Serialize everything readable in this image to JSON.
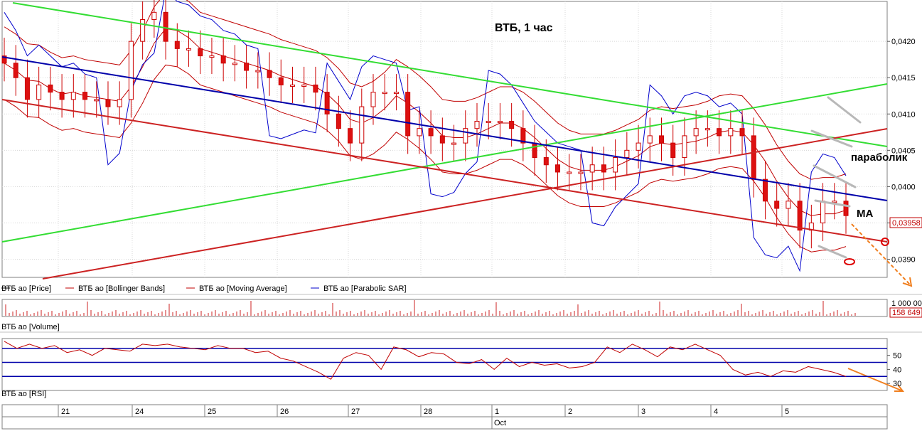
{
  "chart_data": {
    "type": "candlestick",
    "title": "ВТБ, 1 час",
    "annotations": {
      "parabolic": "параболик",
      "ma": "MA"
    },
    "price_axis": {
      "ylim": [
        0.03875,
        0.04255
      ],
      "ticks": [
        "0,0420",
        "0,0415",
        "0,0410",
        "0,0405",
        "0,0400",
        "0,0395",
        "0,0390"
      ],
      "tick_values": [
        0.042,
        0.0415,
        0.041,
        0.0405,
        0.04,
        0.0395,
        0.039
      ],
      "last_price": "0,03958"
    },
    "legend": [
      {
        "label": "ВТБ ао [Price]",
        "color": "#000000"
      },
      {
        "label": "ВТБ ао [Bollinger Bands]",
        "color": "#c00000"
      },
      {
        "label": "ВТБ ао [Moving Average]",
        "color": "#c00000"
      },
      {
        "label": "ВТБ ао [Parabolic SAR]",
        "color": "#0000cc"
      }
    ],
    "price_series": [
      0.0417,
      0.0415,
      0.0412,
      0.0414,
      0.0413,
      0.0412,
      0.0413,
      0.0412,
      0.0412,
      0.0411,
      0.0412,
      0.042,
      0.0423,
      0.0424,
      0.042,
      0.0419,
      0.0419,
      0.0418,
      0.0418,
      0.0417,
      0.0417,
      0.0416,
      0.0416,
      0.0415,
      0.0414,
      0.0414,
      0.0414,
      0.0413,
      0.041,
      0.0408,
      0.0406,
      0.0411,
      0.0413,
      0.0413,
      0.0413,
      0.0407,
      0.0408,
      0.0407,
      0.0406,
      0.0406,
      0.0408,
      0.0409,
      0.0409,
      0.0409,
      0.0408,
      0.0406,
      0.0404,
      0.0403,
      0.0402,
      0.0402,
      0.0402,
      0.0403,
      0.0402,
      0.0404,
      0.0405,
      0.0406,
      0.0407,
      0.0406,
      0.0404,
      0.0407,
      0.0408,
      0.0408,
      0.0407,
      0.0408,
      0.0407,
      0.0401,
      0.0398,
      0.0397,
      0.0398,
      0.0394,
      0.0395,
      0.0398,
      0.0398,
      0.0396
    ],
    "volume_panel": {
      "label": "ВТБ ао [Volume]",
      "ticks": [
        "1 000 00"
      ],
      "last_value": "158 649"
    },
    "rsi_panel": {
      "label": "ВТБ ао [RSI]",
      "ylim": [
        25,
        62
      ],
      "ticks": [
        50,
        40,
        30
      ],
      "levels": [
        55,
        45,
        35
      ],
      "values": [
        60,
        55,
        58,
        55,
        57,
        52,
        54,
        50,
        55,
        54,
        53,
        58,
        57,
        58,
        56,
        55,
        54,
        57,
        55,
        55,
        52,
        53,
        48,
        46,
        42,
        38,
        33,
        48,
        52,
        50,
        40,
        56,
        54,
        49,
        52,
        51,
        45,
        44,
        47,
        40,
        48,
        42,
        45,
        43,
        44,
        41,
        42,
        45,
        56,
        52,
        58,
        54,
        49,
        56,
        54,
        58,
        54,
        50,
        40,
        36,
        38,
        35,
        39,
        38,
        42,
        40,
        38,
        35
      ]
    },
    "x_axis": {
      "days": [
        "21",
        "24",
        "25",
        "26",
        "27",
        "28",
        "1",
        "2",
        "3",
        "4",
        "5"
      ],
      "month": "Oct"
    }
  }
}
